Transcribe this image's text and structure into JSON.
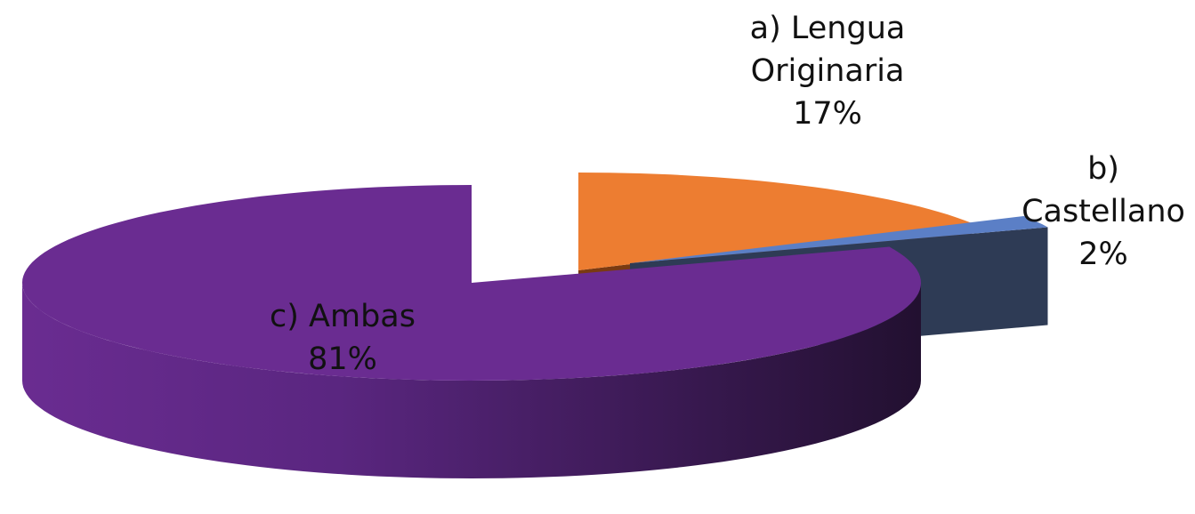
{
  "chart_data": {
    "type": "pie3d",
    "categories": [
      "a) Lengua Originaria",
      "b) Castellano",
      "c) Ambas"
    ],
    "values": [
      17,
      2,
      81
    ],
    "value_labels": [
      "17%",
      "2%",
      "81%"
    ],
    "colors": [
      "#ed7d31",
      "#5b7fc6",
      "#6a2c91"
    ]
  }
}
